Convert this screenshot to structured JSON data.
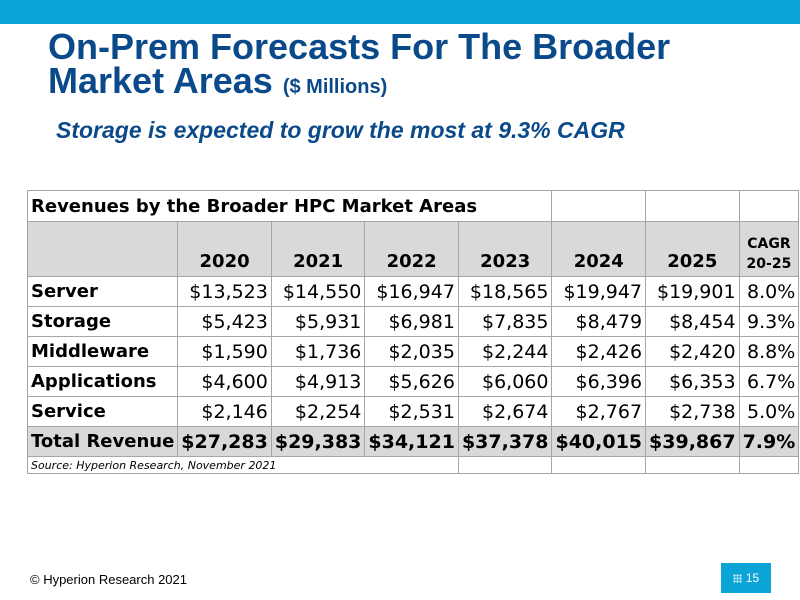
{
  "slide": {
    "title_main": "On-Prem Forecasts For The Broader Market Areas",
    "title_units": "($ Millions)",
    "subtitle": "Storage is expected to grow the most at 9.3% CAGR"
  },
  "table": {
    "caption": "Revenues by the Broader HPC Market Areas",
    "years": [
      "2020",
      "2021",
      "2022",
      "2023",
      "2024",
      "2025"
    ],
    "cagr_header_line1": "CAGR",
    "cagr_header_line2": "20-25",
    "rows": [
      {
        "label": "Server",
        "values": [
          "$13,523",
          "$14,550",
          "$16,947",
          "$18,565",
          "$19,947",
          "$19,901"
        ],
        "cagr": "8.0%"
      },
      {
        "label": "Storage",
        "values": [
          "$5,423",
          "$5,931",
          "$6,981",
          "$7,835",
          "$8,479",
          "$8,454"
        ],
        "cagr": "9.3%"
      },
      {
        "label": "Middleware",
        "values": [
          "$1,590",
          "$1,736",
          "$2,035",
          "$2,244",
          "$2,426",
          "$2,420"
        ],
        "cagr": "8.8%"
      },
      {
        "label": "Applications",
        "values": [
          "$4,600",
          "$4,913",
          "$5,626",
          "$6,060",
          "$6,396",
          "$6,353"
        ],
        "cagr": "6.7%"
      },
      {
        "label": "Service",
        "values": [
          "$2,146",
          "$2,254",
          "$2,531",
          "$2,674",
          "$2,767",
          "$2,738"
        ],
        "cagr": "5.0%"
      }
    ],
    "total": {
      "label": "Total Revenue",
      "values": [
        "$27,283",
        "$29,383",
        "$34,121",
        "$37,378",
        "$40,015",
        "$39,867"
      ],
      "cagr": "7.9%"
    },
    "source": "Source: Hyperion Research, November 2021"
  },
  "footer": {
    "copyright": "© Hyperion Research 2021",
    "page_number": "15"
  },
  "colors": {
    "accent": "#0aa4d6",
    "title": "#0b4a8a",
    "table_shade": "#d9d9d9"
  }
}
